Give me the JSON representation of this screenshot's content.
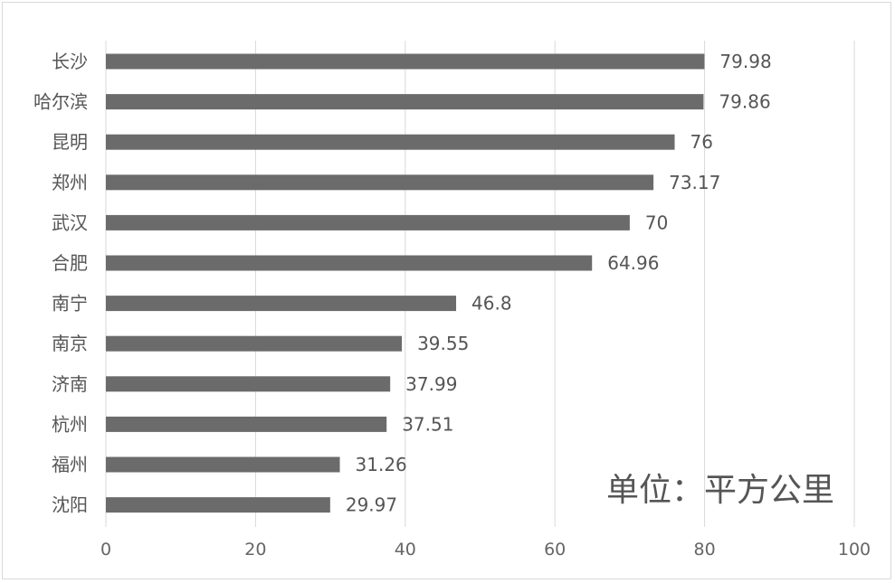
{
  "chart_data": {
    "type": "bar",
    "orientation": "horizontal",
    "categories": [
      "长沙",
      "哈尔滨",
      "昆明",
      "郑州",
      "武汉",
      "合肥",
      "南宁",
      "南京",
      "济南",
      "杭州",
      "福州",
      "沈阳"
    ],
    "values": [
      79.98,
      79.86,
      76,
      73.17,
      70,
      64.96,
      46.8,
      39.55,
      37.99,
      37.51,
      31.26,
      29.97
    ],
    "value_labels": [
      "79.98",
      "79.86",
      "76",
      "73.17",
      "70",
      "64.96",
      "46.8",
      "39.55",
      "37.99",
      "37.51",
      "31.26",
      "29.97"
    ],
    "x_ticks": [
      "0",
      "20",
      "40",
      "60",
      "80",
      "100"
    ],
    "xlim": [
      0,
      100
    ],
    "grid": true,
    "annotation": "单位：平方公里",
    "colors": {
      "bar": "#6b6b6b",
      "grid": "#d9d9d9",
      "text": "#555555"
    }
  }
}
